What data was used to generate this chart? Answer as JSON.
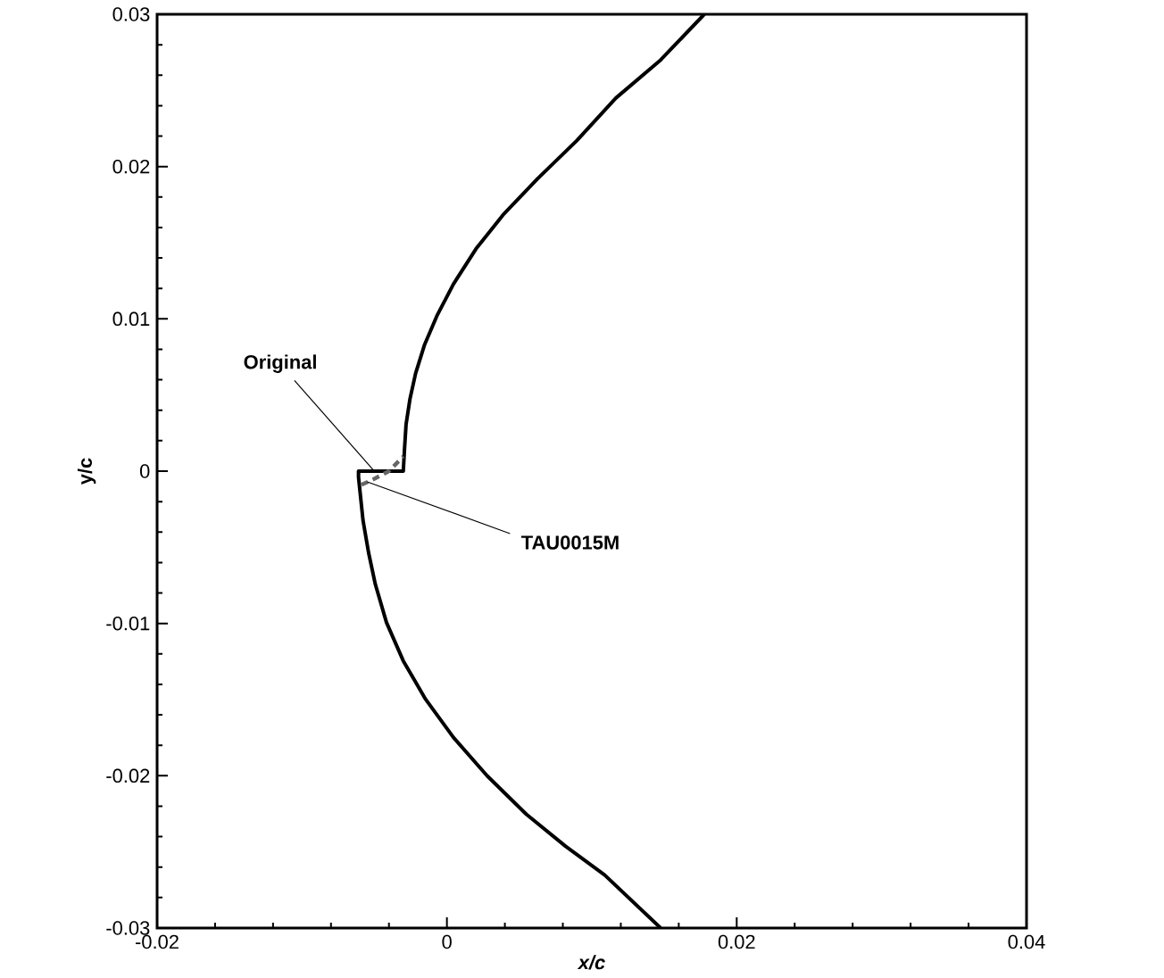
{
  "chart_data": {
    "type": "line",
    "xlabel": "x/c",
    "ylabel": "y/c",
    "xlim": [
      -0.02,
      0.04
    ],
    "ylim": [
      -0.03,
      0.03
    ],
    "xticks": [
      -0.02,
      0,
      0.02,
      0.04
    ],
    "yticks": [
      -0.03,
      -0.02,
      -0.01,
      0,
      0.01,
      0.02,
      0.03
    ],
    "grid": false,
    "legend": false,
    "marker": "none",
    "series": [
      {
        "color": "#000000",
        "line_style": "solid",
        "x": [
          0.01475,
          0.01089,
          0.00819,
          0.00548,
          0.00278,
          0.00046,
          -0.00147,
          -0.00301,
          -0.00417,
          -0.00494,
          -0.00541,
          -0.00579,
          -0.00602,
          -0.0061,
          -0.0061,
          -0.00301,
          -0.00293,
          -0.00282,
          -0.00255,
          -0.00216,
          -0.00154,
          -0.00069,
          0.00046,
          0.00201,
          0.00394,
          0.00625,
          0.00896,
          0.01166,
          0.01475,
          0.01776
        ],
        "values": [
          -0.03,
          -0.02652,
          -0.02463,
          -0.02253,
          -0.02001,
          -0.0175,
          -0.01498,
          -0.01246,
          -0.00994,
          -0.00743,
          -0.00533,
          -0.00323,
          -0.00113,
          -0.0004,
          0,
          0,
          0.00138,
          0.00306,
          0.00474,
          0.00642,
          0.00831,
          0.0102,
          0.0123,
          0.0146,
          0.0169,
          0.0192,
          0.0217,
          0.0245,
          0.027,
          0.03
        ]
      },
      {
        "color": "#666666",
        "line_style": "dashed",
        "x": [
          -0.0059,
          -0.005,
          -0.004,
          -0.00301
        ],
        "values": [
          -0.0009,
          -0.0005,
          0.0,
          0.00097
        ]
      }
    ],
    "annotations": [
      {
        "text": "Original",
        "x": -0.0051,
        "y": 0.0001
      },
      {
        "text": "TAU0015M",
        "x": -0.0055,
        "y": -0.0007
      }
    ]
  }
}
